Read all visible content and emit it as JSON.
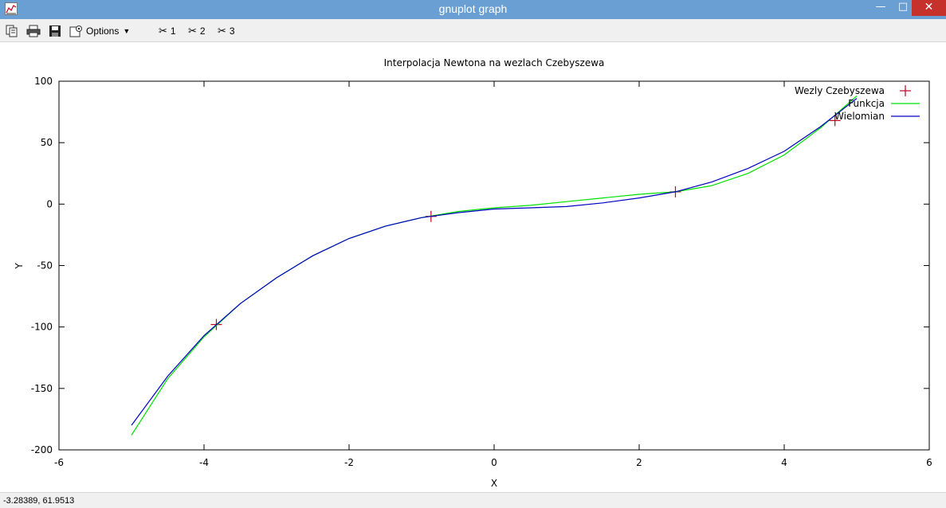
{
  "window": {
    "title": "gnuplot graph",
    "minimize_glyph": "—",
    "maximize_glyph": "□",
    "close_glyph": "✕"
  },
  "toolbar": {
    "icons": [
      "copy-icon",
      "print-icon",
      "save-icon",
      "options-icon"
    ],
    "options_label": "Options",
    "plot_toggles": [
      "1",
      "2",
      "3"
    ]
  },
  "status": {
    "coords": "-3.28389,  61.9513"
  },
  "chart_data": {
    "type": "line",
    "title": "Interpolacja Newtona na wezlach Czebyszewa",
    "xlabel": "X",
    "ylabel": "Y",
    "xlim": [
      -6,
      6
    ],
    "ylim": [
      -200,
      100
    ],
    "xticks": [
      -6,
      -4,
      -2,
      0,
      2,
      4,
      6
    ],
    "yticks": [
      -200,
      -150,
      -100,
      -50,
      0,
      50,
      100
    ],
    "grid": false,
    "legend_position": "top-right",
    "series": [
      {
        "name": "Wezly Czebyszewa",
        "kind": "points",
        "color": "#c00020",
        "x": [
          -3.83,
          -0.87,
          2.5,
          4.7
        ],
        "y": [
          -98,
          -10,
          10,
          68
        ]
      },
      {
        "name": "Funkcja",
        "kind": "line",
        "color": "#00e000",
        "x": [
          -5,
          -4.5,
          -4,
          -3.5,
          -3,
          -2.5,
          -2,
          -1.5,
          -1,
          -0.5,
          0,
          0.5,
          1,
          1.5,
          2,
          2.5,
          3,
          3.5,
          4,
          4.5,
          5
        ],
        "y": [
          -188,
          -142,
          -108,
          -81,
          -60,
          -42,
          -28,
          -18,
          -11,
          -6,
          -3,
          -1,
          2,
          5,
          8,
          10,
          15,
          25,
          40,
          62,
          88
        ]
      },
      {
        "name": "Wielomian",
        "kind": "line",
        "color": "#0000c0",
        "x": [
          -5,
          -4.5,
          -4,
          -3.5,
          -3,
          -2.5,
          -2,
          -1.5,
          -1,
          -0.5,
          0,
          0.5,
          1,
          1.5,
          2,
          2.5,
          3,
          3.5,
          4,
          4.5,
          5
        ],
        "y": [
          -180,
          -140,
          -107,
          -81,
          -60,
          -42,
          -28,
          -18,
          -11,
          -7,
          -4,
          -3,
          -2,
          1,
          5,
          10,
          18,
          29,
          43,
          63,
          86
        ]
      }
    ]
  }
}
